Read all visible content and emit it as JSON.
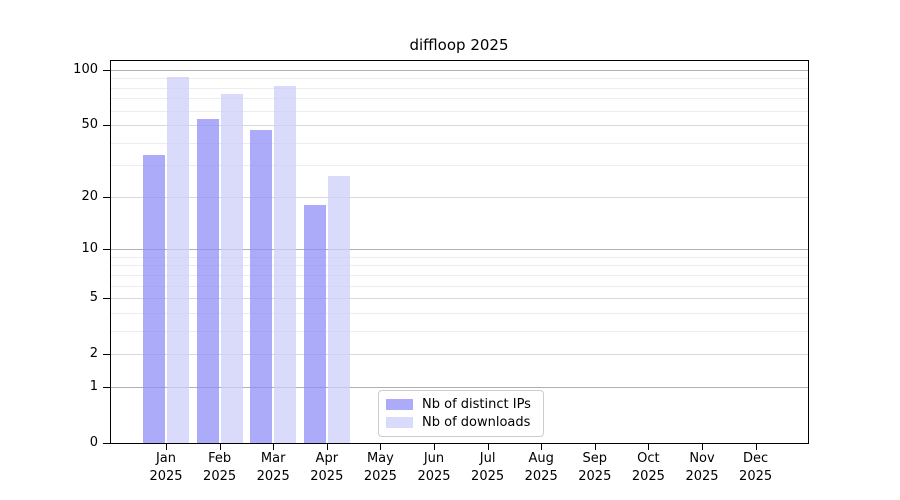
{
  "chart_data": {
    "type": "bar",
    "title": "diffloop 2025",
    "categories": [
      "Jan",
      "Feb",
      "Mar",
      "Apr",
      "May",
      "Jun",
      "Jul",
      "Aug",
      "Sep",
      "Oct",
      "Nov",
      "Dec"
    ],
    "year": "2025",
    "series": [
      {
        "name": "Nb of distinct IPs",
        "color": "rgba(143,143,247,0.75)",
        "values": [
          34,
          54,
          47,
          18,
          0,
          0,
          0,
          0,
          0,
          0,
          0,
          0
        ]
      },
      {
        "name": "Nb of downloads",
        "color": "rgba(205,205,250,0.75)",
        "values": [
          91,
          74,
          82,
          26,
          0,
          0,
          0,
          0,
          0,
          0,
          0,
          0
        ]
      }
    ],
    "y_scale": "log10(1+x)",
    "y_ticks": [
      0,
      1,
      2,
      5,
      10,
      20,
      50,
      100
    ],
    "y_minor_gridlines": [
      3,
      4,
      6,
      7,
      8,
      9,
      30,
      40,
      60,
      70,
      80,
      90
    ],
    "ylim": [
      0,
      113
    ],
    "xlabel": "",
    "ylabel": "",
    "grid": "horizontal",
    "legend_position": "lower-center-inside"
  },
  "colors": {
    "bar_distinct_ips": "rgba(143,143,247,0.75)",
    "bar_downloads": "rgba(205,205,250,0.75)",
    "grid_decade": "#b0b0b0",
    "grid_major": "#d9d9d9",
    "grid_minor": "#ececec",
    "axis": "#000000",
    "legend_border": "#cccccc"
  }
}
